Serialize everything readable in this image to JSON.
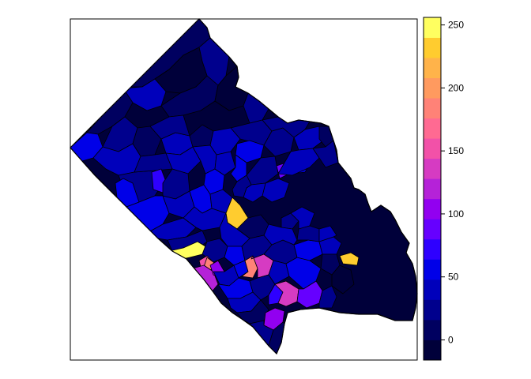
{
  "map": {
    "type": "choropleth",
    "frame": true,
    "background": "#ffffff",
    "border_color": "#000000"
  },
  "legend": {
    "position": "right",
    "range": [
      -16,
      256
    ],
    "ticks": [
      {
        "value": 0,
        "label": "0"
      },
      {
        "value": 50,
        "label": "50"
      },
      {
        "value": 100,
        "label": "100"
      },
      {
        "value": 150,
        "label": "150"
      },
      {
        "value": 200,
        "label": "200"
      },
      {
        "value": 250,
        "label": "250"
      }
    ],
    "bins": [
      {
        "from": -16,
        "to": 0,
        "color": "#00003a"
      },
      {
        "from": 0,
        "to": 16,
        "color": "#000060"
      },
      {
        "from": 16,
        "to": 32,
        "color": "#00008d"
      },
      {
        "from": 32,
        "to": 48,
        "color": "#0000bb"
      },
      {
        "from": 48,
        "to": 64,
        "color": "#0000e8"
      },
      {
        "from": 64,
        "to": 80,
        "color": "#2e00ff"
      },
      {
        "from": 80,
        "to": 96,
        "color": "#6600ff"
      },
      {
        "from": 96,
        "to": 112,
        "color": "#9200f0"
      },
      {
        "from": 112,
        "to": 128,
        "color": "#b522d8"
      },
      {
        "from": 128,
        "to": 144,
        "color": "#d63bc2"
      },
      {
        "from": 144,
        "to": 160,
        "color": "#f251a8"
      },
      {
        "from": 160,
        "to": 176,
        "color": "#ff6a92"
      },
      {
        "from": 176,
        "to": 192,
        "color": "#ff8277"
      },
      {
        "from": 192,
        "to": 208,
        "color": "#ff9a5f"
      },
      {
        "from": 208,
        "to": 224,
        "color": "#ffb34a"
      },
      {
        "from": 224,
        "to": 240,
        "color": "#ffcc2f"
      },
      {
        "from": 240,
        "to": 256,
        "color": "#ffff60"
      }
    ]
  }
}
